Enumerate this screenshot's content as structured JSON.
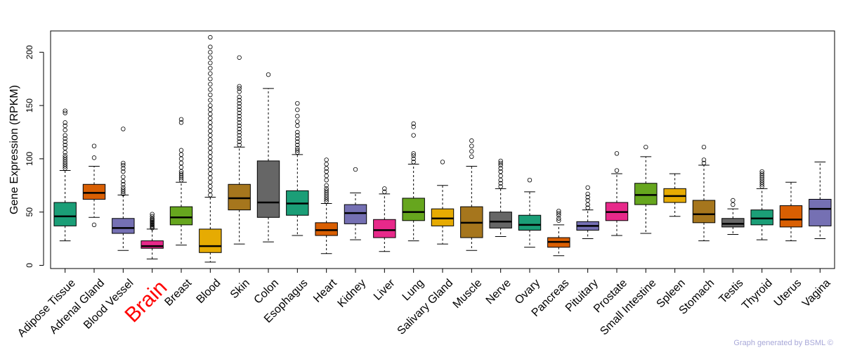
{
  "chart_data": {
    "type": "boxplot",
    "title": "",
    "xlabel": "",
    "ylabel": "Gene Expression (RPKM)",
    "ylim": [
      -3,
      220
    ],
    "yticks": [
      0,
      50,
      100,
      150,
      200
    ],
    "highlight": {
      "category": "Brain",
      "color": "#ff0000"
    },
    "categories": [
      {
        "name": "Adipose Tissue",
        "color": "#1b9e77",
        "whislo": 23,
        "q1": 37,
        "median": 46,
        "q3": 59,
        "whishi": 89,
        "outliers": [
          91,
          93,
          95,
          97,
          99,
          101,
          103,
          106,
          110,
          113,
          116,
          119,
          122,
          127,
          131,
          134,
          143,
          145
        ]
      },
      {
        "name": "Adrenal Gland",
        "color": "#d95f02",
        "whislo": 45,
        "q1": 62,
        "median": 68,
        "q3": 76,
        "whishi": 93,
        "outliers": [
          38,
          101,
          112
        ]
      },
      {
        "name": "Blood Vessel",
        "color": "#7570b3",
        "whislo": 14,
        "q1": 30,
        "median": 35,
        "q3": 44,
        "whishi": 66,
        "outliers": [
          67,
          69,
          71,
          73,
          76,
          79,
          83,
          88,
          91,
          94,
          96,
          128
        ]
      },
      {
        "name": "Brain",
        "color": "#e7298a",
        "whislo": 6,
        "q1": 16,
        "median": 18,
        "q3": 23,
        "whishi": 34,
        "outliers": [
          35,
          36,
          37,
          38,
          39,
          40,
          41,
          42,
          43,
          44,
          46,
          48
        ]
      },
      {
        "name": "Breast",
        "color": "#66a61e",
        "whislo": 19,
        "q1": 38,
        "median": 45,
        "q3": 55,
        "whishi": 78,
        "outliers": [
          80,
          82,
          84,
          86,
          88,
          92,
          96,
          100,
          104,
          108,
          134,
          137
        ]
      },
      {
        "name": "Blood",
        "color": "#e6ab02",
        "whislo": 3,
        "q1": 12,
        "median": 18,
        "q3": 34,
        "whishi": 64,
        "outliers": [
          66,
          70,
          74,
          78,
          82,
          86,
          90,
          94,
          98,
          102,
          106,
          110,
          114,
          118,
          122,
          126,
          130,
          134,
          138,
          142,
          146,
          150,
          155,
          160,
          165,
          170,
          175,
          180,
          185,
          190,
          195,
          200,
          205,
          214
        ]
      },
      {
        "name": "Skin",
        "color": "#a6761d",
        "whislo": 20,
        "q1": 52,
        "median": 63,
        "q3": 76,
        "whishi": 111,
        "outliers": [
          113,
          116,
          119,
          122,
          125,
          128,
          131,
          134,
          137,
          140,
          143,
          146,
          149,
          152,
          155,
          158,
          163,
          166,
          168,
          195
        ]
      },
      {
        "name": "Colon",
        "color": "#666666",
        "whislo": 22,
        "q1": 45,
        "median": 59,
        "q3": 98,
        "whishi": 166,
        "outliers": [
          179
        ]
      },
      {
        "name": "Esophagus",
        "color": "#1b9e77",
        "whislo": 28,
        "q1": 47,
        "median": 58,
        "q3": 70,
        "whishi": 104,
        "outliers": [
          106,
          108,
          110,
          113,
          116,
          119,
          122,
          125,
          131,
          135,
          140,
          146,
          152
        ]
      },
      {
        "name": "Heart",
        "color": "#d95f02",
        "whislo": 11,
        "q1": 28,
        "median": 33,
        "q3": 40,
        "whishi": 58,
        "outliers": [
          60,
          62,
          64,
          66,
          68,
          70,
          72,
          75,
          80,
          84,
          88,
          91,
          95,
          99
        ]
      },
      {
        "name": "Kidney",
        "color": "#7570b3",
        "whislo": 24,
        "q1": 39,
        "median": 49,
        "q3": 57,
        "whishi": 68,
        "outliers": [
          90
        ]
      },
      {
        "name": "Liver",
        "color": "#e7298a",
        "whislo": 13,
        "q1": 26,
        "median": 33,
        "q3": 43,
        "whishi": 67,
        "outliers": [
          69,
          72
        ]
      },
      {
        "name": "Lung",
        "color": "#66a61e",
        "whislo": 23,
        "q1": 42,
        "median": 50,
        "q3": 63,
        "whishi": 95,
        "outliers": [
          97,
          100,
          103,
          105,
          122,
          130,
          133
        ]
      },
      {
        "name": "Salivary Gland",
        "color": "#e6ab02",
        "whislo": 20,
        "q1": 37,
        "median": 44,
        "q3": 53,
        "whishi": 75,
        "outliers": [
          97
        ]
      },
      {
        "name": "Muscle",
        "color": "#a6761d",
        "whislo": 14,
        "q1": 26,
        "median": 40,
        "q3": 55,
        "whishi": 93,
        "outliers": [
          102,
          107,
          112,
          117
        ]
      },
      {
        "name": "Nerve",
        "color": "#666666",
        "whislo": 27,
        "q1": 35,
        "median": 41,
        "q3": 50,
        "whishi": 72,
        "outliers": [
          74,
          77,
          80,
          84,
          88,
          91,
          94,
          96,
          98
        ]
      },
      {
        "name": "Ovary",
        "color": "#1b9e77",
        "whislo": 17,
        "q1": 33,
        "median": 38,
        "q3": 47,
        "whishi": 69,
        "outliers": [
          80
        ]
      },
      {
        "name": "Pancreas",
        "color": "#d95f02",
        "whislo": 9,
        "q1": 17,
        "median": 22,
        "q3": 26,
        "whishi": 38,
        "outliers": [
          42,
          44,
          47,
          49,
          51
        ]
      },
      {
        "name": "Pituitary",
        "color": "#7570b3",
        "whislo": 25,
        "q1": 33,
        "median": 37,
        "q3": 41,
        "whishi": 52,
        "outliers": [
          54,
          57,
          61,
          64,
          67,
          73
        ]
      },
      {
        "name": "Prostate",
        "color": "#e7298a",
        "whislo": 28,
        "q1": 42,
        "median": 50,
        "q3": 59,
        "whishi": 86,
        "outliers": [
          89,
          105
        ]
      },
      {
        "name": "Small Intestine",
        "color": "#66a61e",
        "whislo": 30,
        "q1": 57,
        "median": 66,
        "q3": 77,
        "whishi": 102,
        "outliers": [
          111
        ]
      },
      {
        "name": "Spleen",
        "color": "#e6ab02",
        "whislo": 46,
        "q1": 59,
        "median": 65,
        "q3": 72,
        "whishi": 86,
        "outliers": []
      },
      {
        "name": "Stomach",
        "color": "#a6761d",
        "whislo": 23,
        "q1": 40,
        "median": 48,
        "q3": 61,
        "whishi": 94,
        "outliers": [
          96,
          99,
          111
        ]
      },
      {
        "name": "Testis",
        "color": "#666666",
        "whislo": 29,
        "q1": 36,
        "median": 39,
        "q3": 44,
        "whishi": 53,
        "outliers": [
          57,
          61
        ]
      },
      {
        "name": "Thyroid",
        "color": "#1b9e77",
        "whislo": 24,
        "q1": 38,
        "median": 44,
        "q3": 52,
        "whishi": 72,
        "outliers": [
          74,
          76,
          78,
          80,
          82,
          84,
          86,
          88
        ]
      },
      {
        "name": "Uterus",
        "color": "#d95f02",
        "whislo": 23,
        "q1": 36,
        "median": 43,
        "q3": 56,
        "whishi": 78,
        "outliers": []
      },
      {
        "name": "Vagina",
        "color": "#7570b3",
        "whislo": 25,
        "q1": 37,
        "median": 53,
        "q3": 62,
        "whishi": 97,
        "outliers": []
      }
    ]
  },
  "footer": {
    "credit": "Graph generated by BSML ©"
  }
}
